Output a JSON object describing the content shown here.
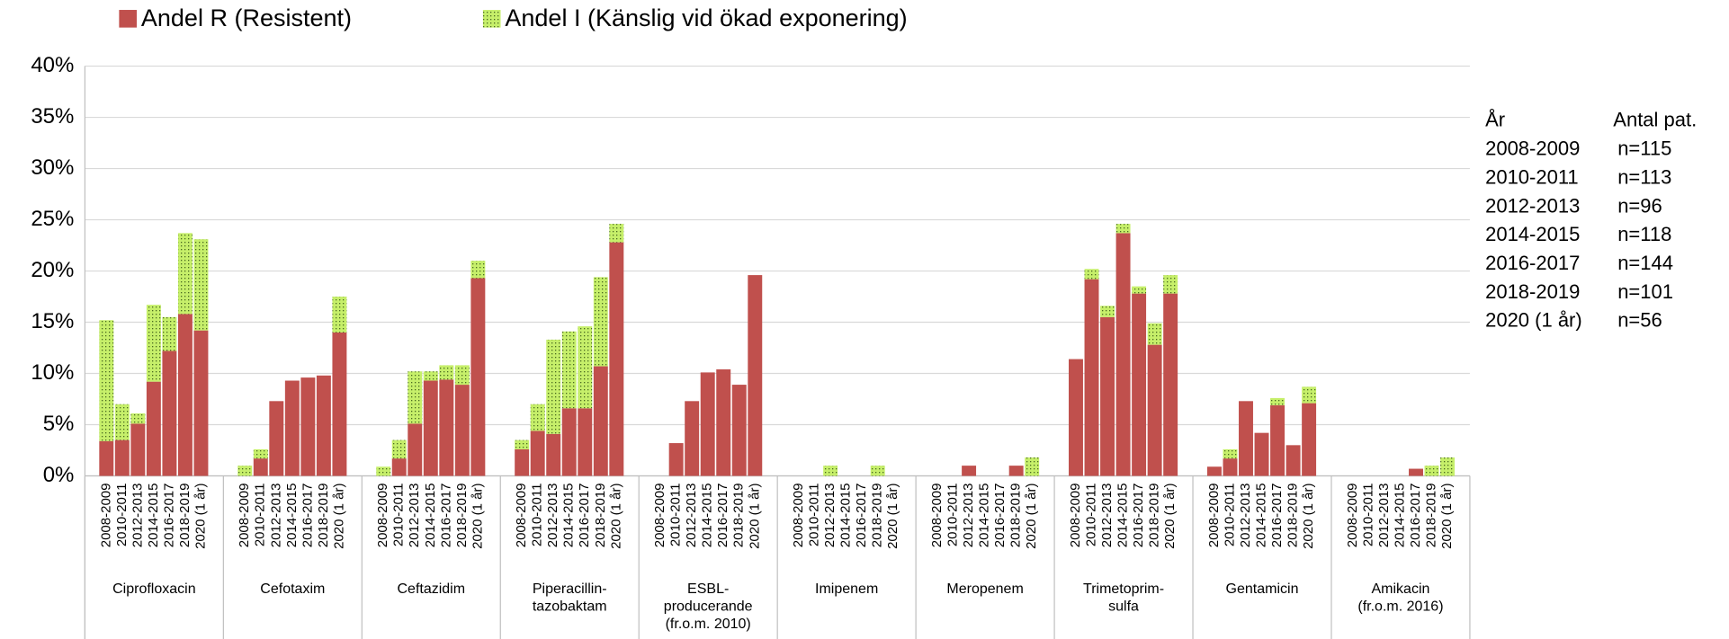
{
  "chart_data": {
    "type": "stacked-bar",
    "legend_position": "top",
    "groups": [
      [
        "Ciprofloxacin"
      ],
      [
        "Cefotaxim"
      ],
      [
        "Ceftazidim"
      ],
      [
        "Piperacillin-",
        "tazobaktam"
      ],
      [
        "ESBL-",
        "producerande",
        "(fr.o.m. 2010)"
      ],
      [
        "Imipenem"
      ],
      [
        "Meropenem"
      ],
      [
        "Trimetoprim-",
        "sulfa"
      ],
      [
        "Gentamicin"
      ],
      [
        "Amikacin",
        "(fr.o.m. 2016)"
      ]
    ],
    "years": [
      "2008-2009",
      "2010-2011",
      "2012-2013",
      "2014-2015",
      "2016-2017",
      "2018-2019",
      "2020 (1 år)"
    ],
    "series": [
      {
        "name": "Andel R (Resistent)",
        "color": "#c0504d",
        "values": [
          [
            3.4,
            3.5,
            5.1,
            9.2,
            12.2,
            15.8,
            14.2
          ],
          [
            0,
            1.7,
            7.3,
            9.3,
            9.6,
            9.8,
            14.0
          ],
          [
            0,
            1.7,
            5.1,
            9.3,
            9.4,
            8.9,
            19.3
          ],
          [
            2.6,
            4.4,
            4.1,
            6.6,
            6.6,
            10.7,
            22.8
          ],
          [
            null,
            3.2,
            7.3,
            10.1,
            10.4,
            8.9,
            19.6
          ],
          [
            0,
            0,
            0,
            0,
            0,
            0,
            0
          ],
          [
            0,
            0,
            1.0,
            0,
            0,
            1.0,
            0
          ],
          [
            11.4,
            19.2,
            15.5,
            23.7,
            17.8,
            12.8,
            17.8
          ],
          [
            0.9,
            1.7,
            7.3,
            4.2,
            6.9,
            3.0,
            7.1
          ],
          [
            null,
            null,
            null,
            null,
            0.7,
            0,
            0
          ]
        ]
      },
      {
        "name": "Andel I (Känslig vid ökad exponering)",
        "color": "#c6ef6a",
        "values": [
          [
            11.8,
            3.5,
            1.0,
            7.5,
            3.3,
            7.9,
            8.9
          ],
          [
            1.0,
            0.9,
            0,
            0,
            0,
            0,
            3.5
          ],
          [
            0.9,
            1.8,
            5.1,
            0.9,
            1.4,
            1.9,
            1.7
          ],
          [
            0.9,
            2.6,
            9.2,
            7.5,
            8.0,
            8.7,
            1.8
          ],
          [
            null,
            0,
            0,
            0,
            0,
            0,
            0
          ],
          [
            0,
            0,
            1.0,
            0,
            0,
            1.0,
            0
          ],
          [
            0,
            0,
            0,
            0,
            0,
            0,
            1.8
          ],
          [
            0,
            1.0,
            1.1,
            0.9,
            0.7,
            2.1,
            1.8
          ],
          [
            0,
            0.9,
            0,
            0,
            0.7,
            0,
            1.6
          ],
          [
            null,
            null,
            null,
            null,
            0,
            1.0,
            1.8
          ]
        ]
      }
    ],
    "ylim": [
      0,
      40
    ],
    "yticks": [
      {
        "value": 0,
        "label": "0%"
      },
      {
        "value": 5,
        "label": "5%"
      },
      {
        "value": 10,
        "label": "10%"
      },
      {
        "value": 15,
        "label": "15%"
      },
      {
        "value": 20,
        "label": "20%"
      },
      {
        "value": 25,
        "label": "25%"
      },
      {
        "value": 30,
        "label": "30%"
      },
      {
        "value": 35,
        "label": "35%"
      },
      {
        "value": 40,
        "label": "40%"
      }
    ],
    "grid": true,
    "side_table": {
      "header": [
        "År",
        "Antal pat."
      ],
      "rows": [
        [
          "2008-2009",
          "n=115"
        ],
        [
          "2010-2011",
          "n=113"
        ],
        [
          "2012-2013",
          "n=96"
        ],
        [
          "2014-2015",
          "n=118"
        ],
        [
          "2016-2017",
          "n=144"
        ],
        [
          "2018-2019",
          "n=101"
        ],
        [
          "2020 (1 år)",
          "n=56"
        ]
      ]
    }
  }
}
